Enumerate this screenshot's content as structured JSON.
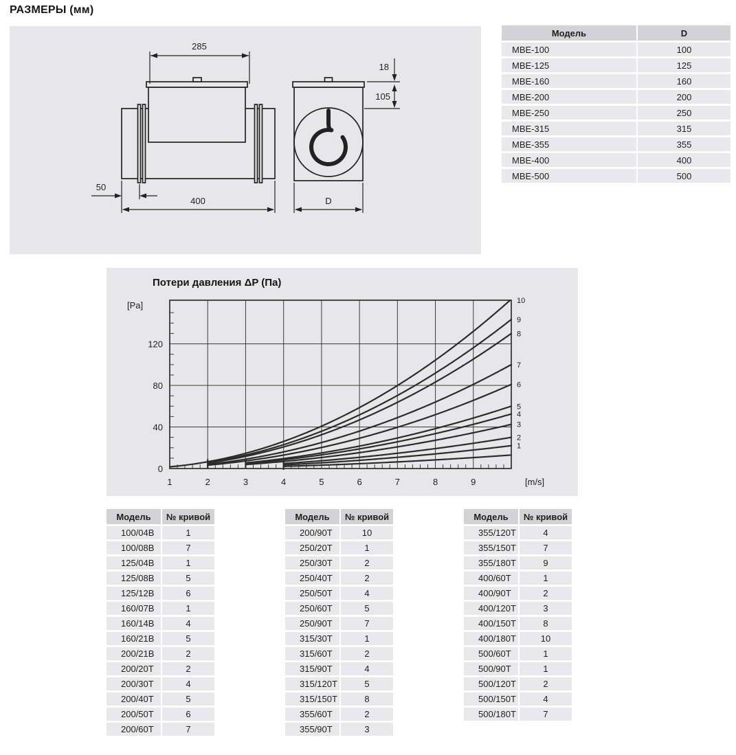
{
  "page_title": "РАЗМЕРЫ (мм)",
  "colors": {
    "panel_bg": "#e7e7e9",
    "table_header_bg": "#d3d3d5",
    "table_row_bg": "#e9e9eb",
    "line": "#222222",
    "curve": "#2b2b2b",
    "text": "#1e1e1e"
  },
  "drawing": {
    "dim_labels": {
      "top_width": "285",
      "lid_height": "18",
      "box_depth": "105",
      "end_offset": "50",
      "total_length": "400",
      "diameter": "D"
    }
  },
  "model_table": {
    "headers": [
      "Модель",
      "D"
    ],
    "rows": [
      [
        "МВЕ-100",
        "100"
      ],
      [
        "МВЕ-125",
        "125"
      ],
      [
        "МВЕ-160",
        "160"
      ],
      [
        "МВЕ-200",
        "200"
      ],
      [
        "МВЕ-250",
        "250"
      ],
      [
        "МВЕ-315",
        "315"
      ],
      [
        "МВЕ-355",
        "355"
      ],
      [
        "МВЕ-400",
        "400"
      ],
      [
        "МВЕ-500",
        "500"
      ]
    ]
  },
  "chart_data": {
    "type": "line",
    "title": "Потери давления ΔP (Па)",
    "ylabel": "[Pa]",
    "xlabel": "[m/s]",
    "xlim": [
      1,
      10
    ],
    "ylim": [
      0,
      162
    ],
    "x_ticks": [
      1,
      2,
      3,
      4,
      5,
      6,
      7,
      8,
      9
    ],
    "y_ticks": [
      0,
      40,
      80,
      120
    ],
    "x_minor_step": 0.2,
    "y_minor_step": 10,
    "grid": true,
    "legend_position": "right-edge curve numbers",
    "model": "dP = k * v^2 (Pa), v in m/s, curves numbered 1-10 plus one unlabeled lowest curve",
    "series": [
      {
        "name": "10",
        "k": 1.63,
        "v_start": 1,
        "end_dp_at_v10": 163
      },
      {
        "name": "9",
        "k": 1.435,
        "v_start": 2,
        "end_dp_at_v10": 143
      },
      {
        "name": "8",
        "k": 1.3,
        "v_start": 2,
        "end_dp_at_v10": 130
      },
      {
        "name": "7",
        "k": 1.0,
        "v_start": 2,
        "end_dp_at_v10": 100
      },
      {
        "name": "6",
        "k": 0.81,
        "v_start": 2,
        "end_dp_at_v10": 81
      },
      {
        "name": "5",
        "k": 0.6,
        "v_start": 3,
        "end_dp_at_v10": 60
      },
      {
        "name": "4",
        "k": 0.525,
        "v_start": 3,
        "end_dp_at_v10": 52
      },
      {
        "name": "3",
        "k": 0.425,
        "v_start": 3,
        "end_dp_at_v10": 42
      },
      {
        "name": "2",
        "k": 0.3,
        "v_start": 4,
        "end_dp_at_v10": 30
      },
      {
        "name": "1",
        "k": 0.22,
        "v_start": 4,
        "end_dp_at_v10": 22
      },
      {
        "name": "",
        "k": 0.13,
        "v_start": 4,
        "end_dp_at_v10": 13
      }
    ]
  },
  "curve_tables": [
    {
      "headers": [
        "Модель",
        "№ кривой"
      ],
      "rows": [
        [
          "100/04В",
          "1"
        ],
        [
          "100/08В",
          "7"
        ],
        [
          "125/04В",
          "1"
        ],
        [
          "125/08В",
          "5"
        ],
        [
          "125/12В",
          "6"
        ],
        [
          "160/07В",
          "1"
        ],
        [
          "160/14В",
          "4"
        ],
        [
          "160/21В",
          "5"
        ],
        [
          "200/21В",
          "2"
        ],
        [
          "200/20Т",
          "2"
        ],
        [
          "200/30Т",
          "4"
        ],
        [
          "200/40Т",
          "5"
        ],
        [
          "200/50Т",
          "6"
        ],
        [
          "200/60Т",
          "7"
        ]
      ]
    },
    {
      "headers": [
        "Модель",
        "№ кривой"
      ],
      "rows": [
        [
          "200/90Т",
          "10"
        ],
        [
          "250/20Т",
          "1"
        ],
        [
          "250/30Т",
          "2"
        ],
        [
          "250/40Т",
          "2"
        ],
        [
          "250/50Т",
          "4"
        ],
        [
          "250/60Т",
          "5"
        ],
        [
          "250/90Т",
          "7"
        ],
        [
          "315/30Т",
          "1"
        ],
        [
          "315/60Т",
          "2"
        ],
        [
          "315/90Т",
          "4"
        ],
        [
          "315/120Т",
          "5"
        ],
        [
          "315/150Т",
          "8"
        ],
        [
          "355/60Т",
          "2"
        ],
        [
          "355/90Т",
          "3"
        ]
      ]
    },
    {
      "headers": [
        "Модель",
        "№ кривой"
      ],
      "rows": [
        [
          "355/120Т",
          "4"
        ],
        [
          "355/150Т",
          "7"
        ],
        [
          "355/180Т",
          "9"
        ],
        [
          "400/60Т",
          "1"
        ],
        [
          "400/90Т",
          "2"
        ],
        [
          "400/120Т",
          "3"
        ],
        [
          "400/150Т",
          "8"
        ],
        [
          "400/180Т",
          "10"
        ],
        [
          "500/60Т",
          "1"
        ],
        [
          "500/90Т",
          "1"
        ],
        [
          "500/120Т",
          "2"
        ],
        [
          "500/150Т",
          "4"
        ],
        [
          "500/180Т",
          "7"
        ]
      ]
    }
  ]
}
